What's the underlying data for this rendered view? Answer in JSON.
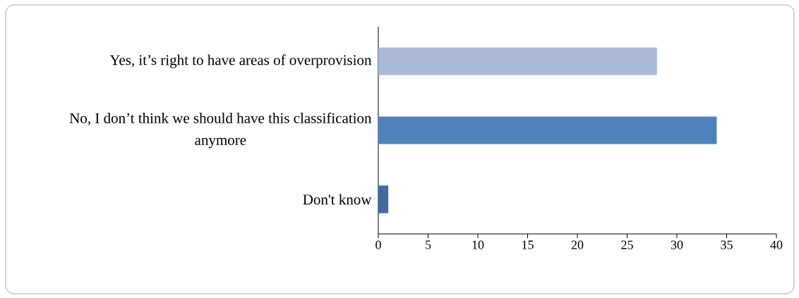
{
  "chart_data": {
    "type": "bar",
    "orientation": "horizontal",
    "categories": [
      "Yes, it’s right to have areas of overprovision",
      "No, I don’t think we should have this classification anymore",
      "Don't know"
    ],
    "values": [
      28,
      34,
      1
    ],
    "colors": [
      "#aab9d8",
      "#4f81bd",
      "#3f6b9f"
    ],
    "xlim": [
      0,
      40
    ],
    "xticks": [
      0,
      5,
      10,
      15,
      20,
      25,
      30,
      35,
      40
    ],
    "grid": false
  }
}
